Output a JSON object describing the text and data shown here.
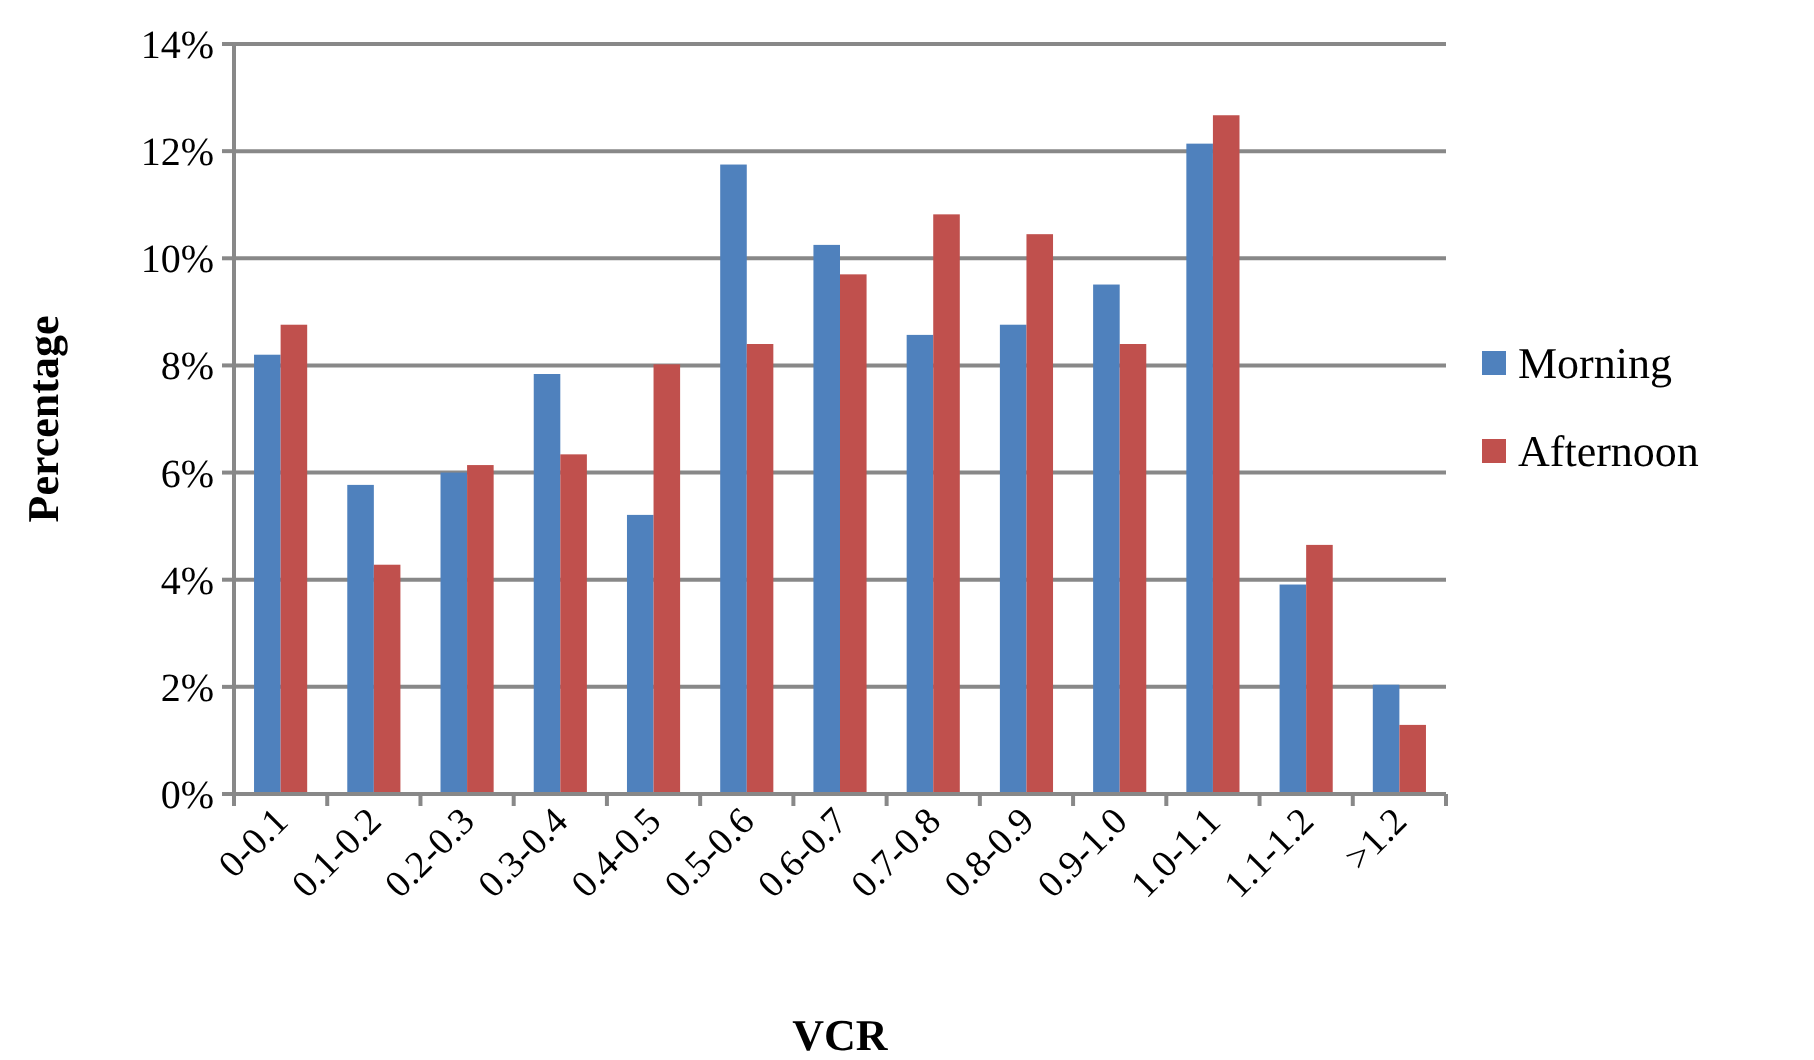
{
  "chart_data": {
    "type": "bar",
    "xlabel": "VCR",
    "ylabel": "Percentage",
    "categories": [
      "0-0.1",
      "0.1-0.2",
      "0.2-0.3",
      "0.3-0.4",
      "0.4-0.5",
      "0.5-0.6",
      "0.6-0.7",
      "0.7-0.8",
      "0.8-0.9",
      "0.9-1.0",
      "1.0-1.1",
      "1.1-1.2",
      ">1.2"
    ],
    "series": [
      {
        "name": "Morning",
        "color": "#4f81bd",
        "values": [
          8.2,
          5.77,
          6.0,
          7.84,
          5.21,
          11.75,
          10.25,
          8.57,
          8.76,
          9.51,
          12.14,
          3.91,
          2.04
        ]
      },
      {
        "name": "Afternoon",
        "color": "#c0504d",
        "values": [
          8.76,
          4.28,
          6.14,
          6.34,
          8.02,
          8.4,
          9.7,
          10.82,
          10.45,
          8.4,
          12.67,
          4.65,
          1.29
        ]
      }
    ],
    "ylim": [
      0,
      14
    ],
    "yticks": [
      {
        "value": 0,
        "label": "0%"
      },
      {
        "value": 2,
        "label": "2%"
      },
      {
        "value": 4,
        "label": "4%"
      },
      {
        "value": 6,
        "label": "6%"
      },
      {
        "value": 8,
        "label": "8%"
      },
      {
        "value": 10,
        "label": "10%"
      },
      {
        "value": 12,
        "label": "12%"
      },
      {
        "value": 14,
        "label": "14%"
      }
    ],
    "grid": "y",
    "legend": "right"
  }
}
